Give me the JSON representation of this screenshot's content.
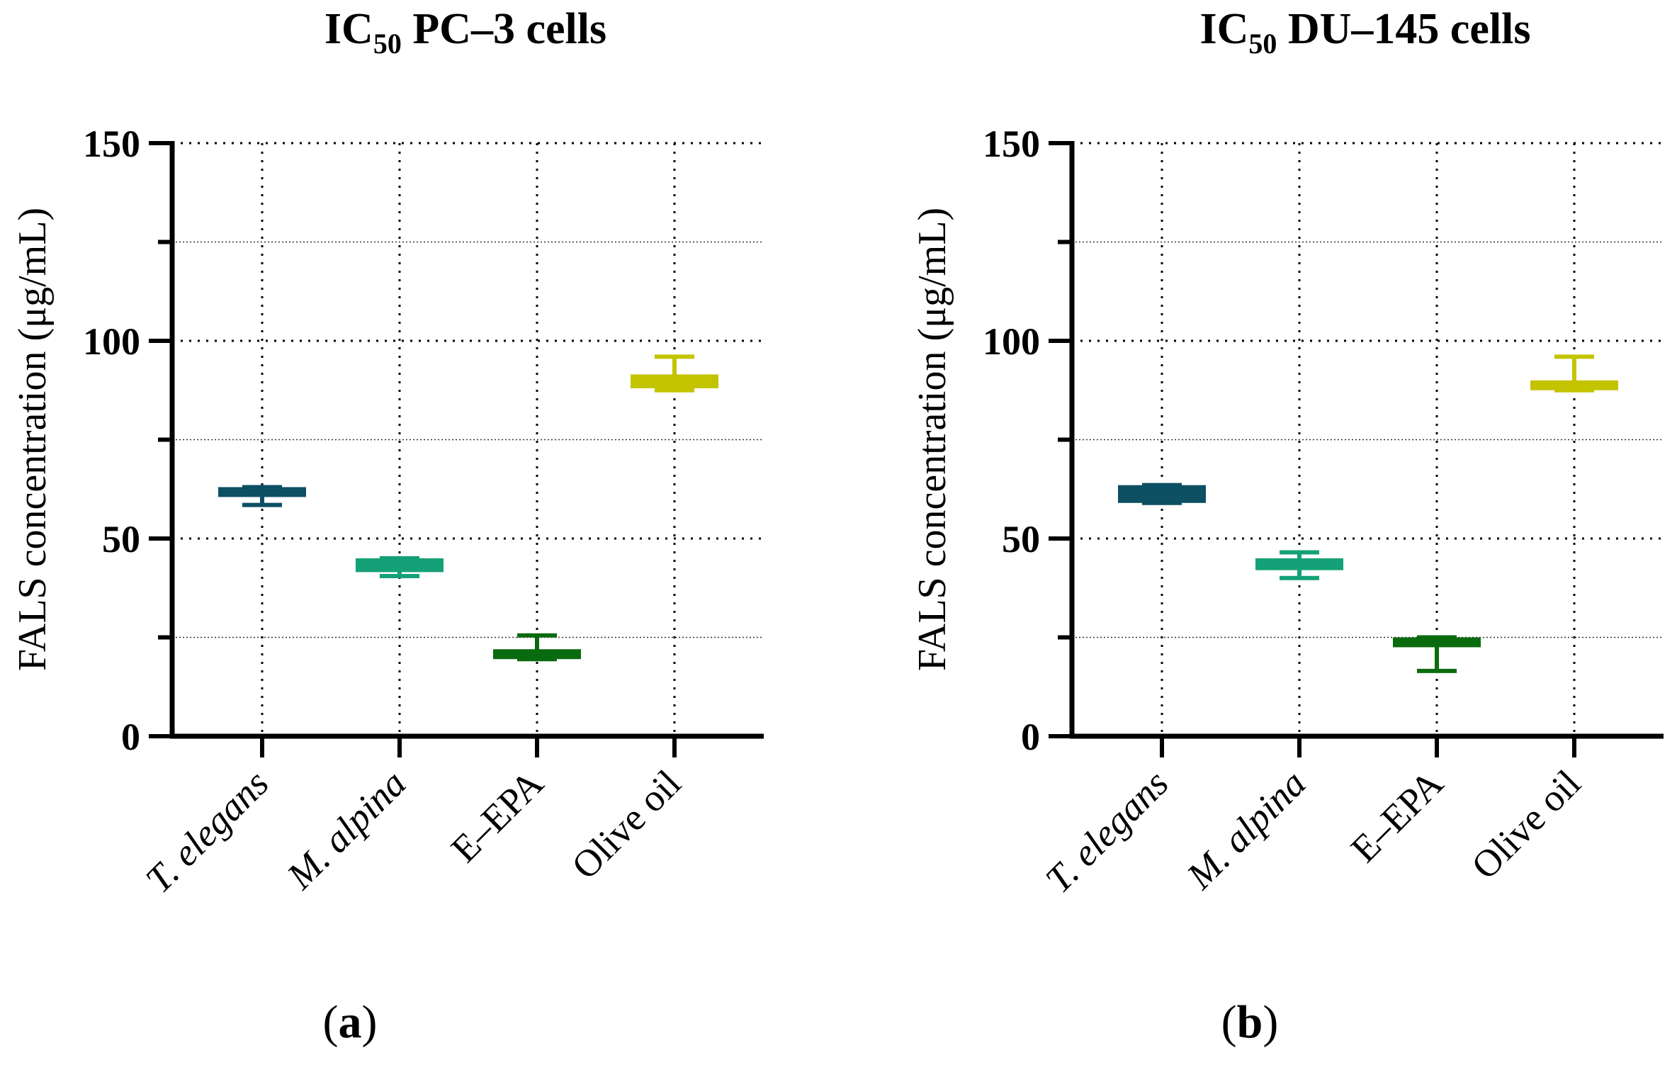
{
  "colors": {
    "axis": "#000000",
    "grid": "#000000",
    "t_elegans": "#0d4f63",
    "m_alpina": "#15a177",
    "e_epa": "#0a6b0e",
    "olive_oil": "#c4c300"
  },
  "chart_data": [
    {
      "type": "box",
      "panel_label": "a",
      "title_prefix": "IC",
      "title_subscript": "50",
      "title_suffix": " PC–3 cells",
      "ylabel": "FALS concentration (μg/mL)",
      "xlabel": "",
      "ylim": [
        0,
        150
      ],
      "yticks": [
        0,
        50,
        100,
        150
      ],
      "minor_yticks": [
        25,
        75,
        125
      ],
      "grid": true,
      "categories": [
        "T. elegans",
        "M. alpina",
        "E–EPA",
        "Olive oil"
      ],
      "categories_italic": [
        true,
        true,
        false,
        false
      ],
      "series_colors": [
        "#0d4f63",
        "#15a177",
        "#0a6b0e",
        "#c4c300"
      ],
      "boxes": [
        {
          "min": 58.5,
          "q1": 60.5,
          "median": 61.5,
          "q3": 63.0,
          "max": 63.0
        },
        {
          "min": 40.5,
          "q1": 41.5,
          "median": 43.0,
          "q3": 45.0,
          "max": 45.0
        },
        {
          "min": 19.5,
          "q1": 19.5,
          "median": 20.5,
          "q3": 22.0,
          "max": 25.5
        },
        {
          "min": 87.5,
          "q1": 88.0,
          "median": 89.5,
          "q3": 91.5,
          "max": 96.0
        }
      ]
    },
    {
      "type": "box",
      "panel_label": "b",
      "title_prefix": "IC",
      "title_subscript": "50",
      "title_suffix": " DU–145 cells",
      "ylabel": "FALS concentration (μg/mL)",
      "xlabel": "",
      "ylim": [
        0,
        150
      ],
      "yticks": [
        0,
        50,
        100,
        150
      ],
      "minor_yticks": [
        25,
        75,
        125
      ],
      "grid": true,
      "categories": [
        "T. elegans",
        "M. alpina",
        "E–EPA",
        "Olive oil"
      ],
      "categories_italic": [
        true,
        true,
        false,
        false
      ],
      "series_colors": [
        "#0d4f63",
        "#15a177",
        "#0a6b0e",
        "#c4c300"
      ],
      "boxes": [
        {
          "min": 59.0,
          "q1": 59.0,
          "median": 61.0,
          "q3": 63.5,
          "max": 63.5
        },
        {
          "min": 40.0,
          "q1": 42.0,
          "median": 43.5,
          "q3": 45.0,
          "max": 46.5
        },
        {
          "min": 16.5,
          "q1": 22.5,
          "median": 23.5,
          "q3": 25.0,
          "max": 25.0
        },
        {
          "min": 87.5,
          "q1": 87.5,
          "median": 88.5,
          "q3": 90.0,
          "max": 96.0
        }
      ]
    }
  ]
}
